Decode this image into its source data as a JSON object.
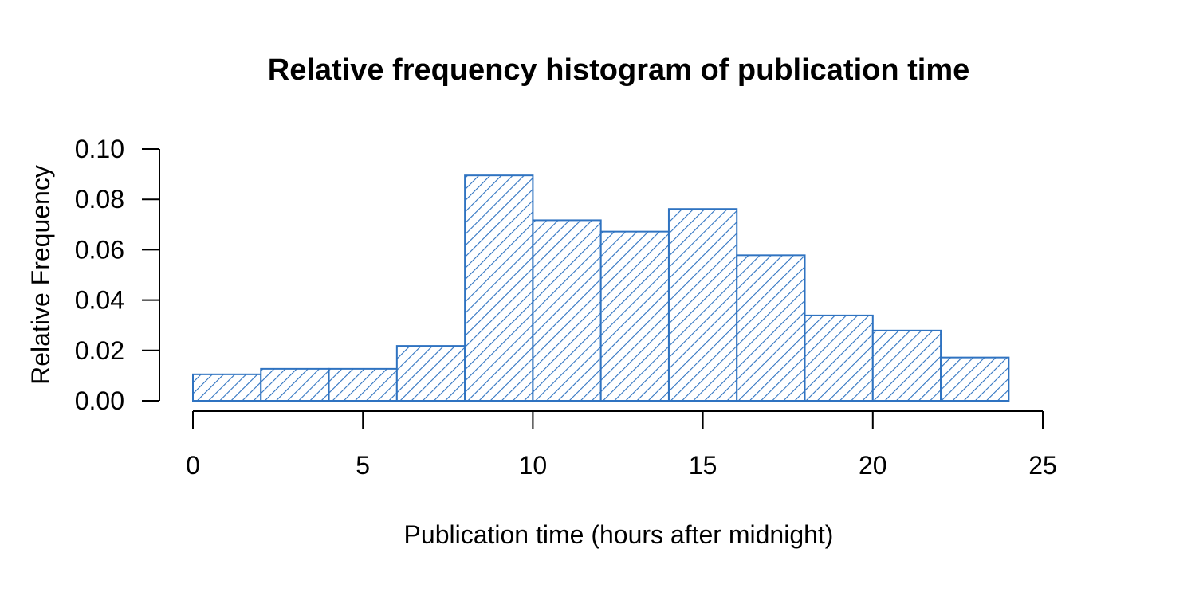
{
  "chart_data": {
    "type": "bar",
    "title": "Relative frequency histogram of publication time",
    "xlabel": "Publication time (hours after midnight)",
    "ylabel": "Relative Frequency",
    "xlim": [
      0,
      25
    ],
    "ylim": [
      0,
      0.1
    ],
    "x_ticks": [
      "0",
      "5",
      "10",
      "15",
      "20",
      "25"
    ],
    "y_ticks": [
      "0.00",
      "0.02",
      "0.04",
      "0.06",
      "0.08",
      "0.10"
    ],
    "bin_edges": [
      0,
      2,
      4,
      6,
      8,
      10,
      12,
      14,
      16,
      18,
      20,
      22,
      24
    ],
    "values": [
      0.0105,
      0.0127,
      0.0127,
      0.0218,
      0.0895,
      0.0717,
      0.0672,
      0.0762,
      0.0578,
      0.0339,
      0.0279,
      0.0172
    ],
    "grid": false,
    "fill_pattern": "diagonal-hatch",
    "bar_color": "#2f73c1"
  }
}
